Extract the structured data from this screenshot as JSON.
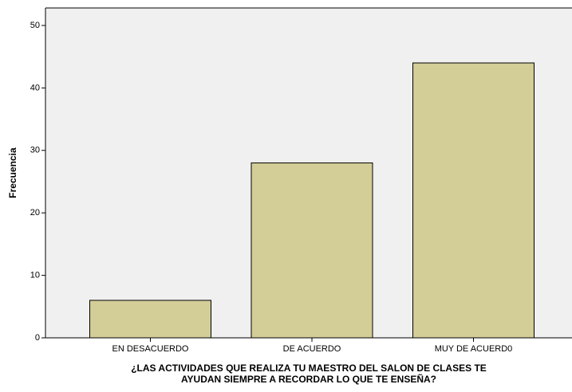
{
  "chart_data": {
    "type": "bar",
    "categories": [
      "EN DESACUERDO",
      "DE ACUERDO",
      "MUY DE ACUERD0"
    ],
    "values": [
      6,
      28,
      44
    ],
    "color": "#d3ce97",
    "ylabel": "Frecuencia",
    "xlabel": [
      "¿LAS ACTIVIDADES QUE REALIZA TU MAESTRO DEL SALON DE CLASES TE",
      "AYUDAN SIEMPRE A RECORDAR LO QUE TE ENSEÑA?"
    ],
    "ylim": [
      0,
      52.8
    ],
    "yticks": [
      0,
      10,
      20,
      30,
      40,
      50
    ]
  }
}
